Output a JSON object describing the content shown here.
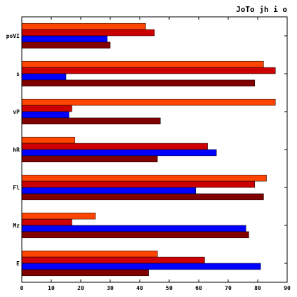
{
  "chart_data": {
    "type": "bar",
    "orientation": "horizontal",
    "title": "JoTo jh i o",
    "xlabel": "",
    "ylabel": "",
    "categories": [
      "E",
      "Mz",
      "Fl",
      "hR",
      "vP",
      "s",
      "poVI"
    ],
    "xlim": [
      0,
      90
    ],
    "xticks": [
      0,
      10,
      20,
      30,
      40,
      50,
      60,
      70,
      80,
      90
    ],
    "grid": false,
    "legend": "none",
    "series": [
      {
        "color": "#ff4500",
        "values": [
          46,
          25,
          83,
          18,
          86,
          82,
          42
        ]
      },
      {
        "color": "#cc0000",
        "values": [
          62,
          17,
          79,
          63,
          17,
          86,
          45
        ]
      },
      {
        "color": "#0000ff",
        "values": [
          81,
          76,
          59,
          66,
          16,
          15,
          29
        ]
      },
      {
        "color": "#800000",
        "values": [
          43,
          77,
          82,
          46,
          47,
          79,
          30
        ]
      }
    ]
  }
}
